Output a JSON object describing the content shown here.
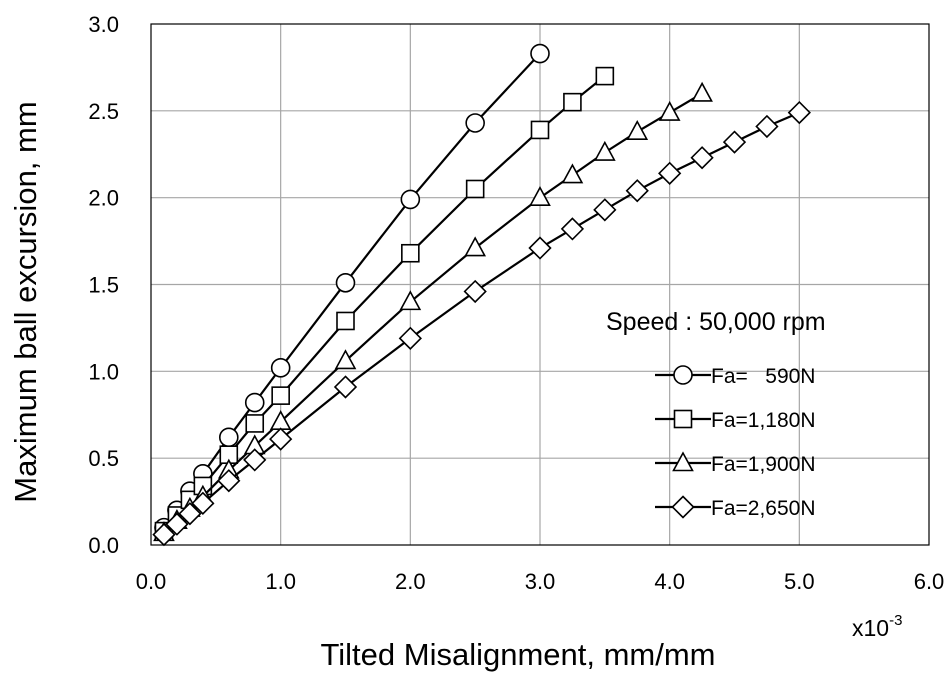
{
  "chart_data": {
    "type": "line",
    "title": "",
    "xlabel": "Tilted Misalignment, mm/mm",
    "ylabel": "Maximum ball excursion, mm",
    "x_multiplier_base": "x10",
    "x_multiplier_exp": "-3",
    "xlim": [
      0,
      6
    ],
    "ylim": [
      0,
      3
    ],
    "x_ticks": [
      "0.0",
      "1.0",
      "2.0",
      "3.0",
      "4.0",
      "5.0",
      "6.0"
    ],
    "y_ticks": [
      "0.0",
      "0.5",
      "1.0",
      "1.5",
      "2.0",
      "2.5",
      "3.0"
    ],
    "grid": true,
    "legend_title": "Speed : 50,000 rpm",
    "legend_position": "right",
    "series": [
      {
        "name": "Fa=   590N",
        "marker": "circle",
        "x": [
          0.1,
          0.2,
          0.3,
          0.4,
          0.6,
          0.8,
          1.0,
          1.5,
          2.0,
          2.5,
          3.0
        ],
        "y": [
          0.1,
          0.2,
          0.31,
          0.41,
          0.62,
          0.82,
          1.02,
          1.51,
          1.99,
          2.43,
          2.83
        ]
      },
      {
        "name": "Fa=1,180N",
        "marker": "square",
        "x": [
          0.1,
          0.2,
          0.3,
          0.4,
          0.6,
          0.8,
          1.0,
          1.5,
          2.0,
          2.5,
          3.0,
          3.25,
          3.5
        ],
        "y": [
          0.08,
          0.17,
          0.26,
          0.34,
          0.52,
          0.7,
          0.86,
          1.29,
          1.68,
          2.05,
          2.39,
          2.55,
          2.7
        ]
      },
      {
        "name": "Fa=1,900N",
        "marker": "triangle",
        "x": [
          0.1,
          0.2,
          0.3,
          0.4,
          0.6,
          0.8,
          1.0,
          1.5,
          2.0,
          2.5,
          3.0,
          3.25,
          3.5,
          3.75,
          4.0,
          4.25
        ],
        "y": [
          0.07,
          0.14,
          0.21,
          0.28,
          0.43,
          0.57,
          0.71,
          1.06,
          1.4,
          1.71,
          2.0,
          2.13,
          2.26,
          2.38,
          2.49,
          2.6
        ]
      },
      {
        "name": "Fa=2,650N",
        "marker": "diamond",
        "x": [
          0.1,
          0.2,
          0.3,
          0.4,
          0.6,
          0.8,
          1.0,
          1.5,
          2.0,
          2.5,
          3.0,
          3.25,
          3.5,
          3.75,
          4.0,
          4.25,
          4.5,
          4.75,
          5.0
        ],
        "y": [
          0.06,
          0.12,
          0.18,
          0.24,
          0.37,
          0.49,
          0.61,
          0.91,
          1.19,
          1.46,
          1.71,
          1.82,
          1.93,
          2.04,
          2.14,
          2.23,
          2.32,
          2.41,
          2.49
        ]
      }
    ]
  }
}
